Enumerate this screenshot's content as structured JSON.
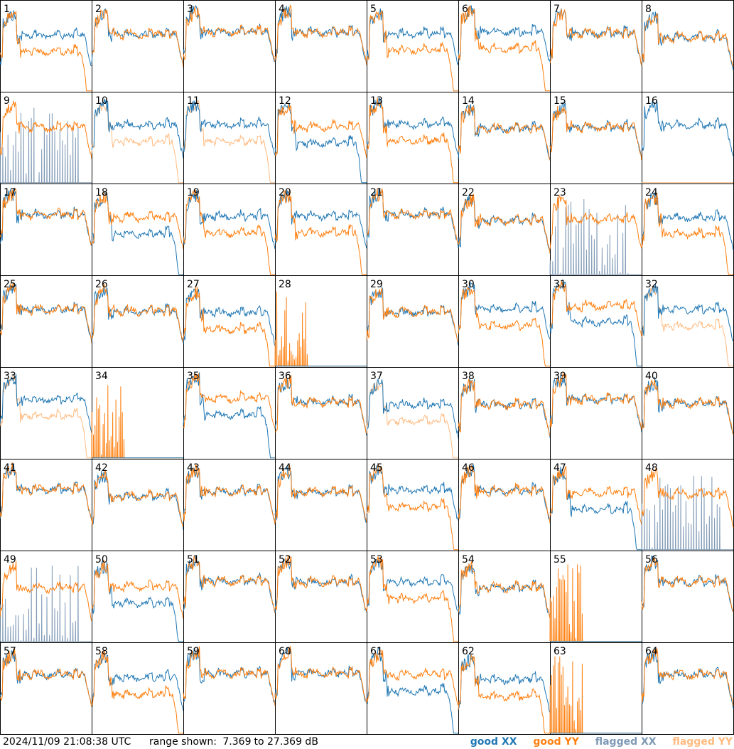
{
  "chart_data": {
    "type": "line",
    "layout": "small multiples, 8 x 8 grid of antenna spectra",
    "tiles": [
      "1",
      "2",
      "3",
      "4",
      "5",
      "6",
      "7",
      "8",
      "9",
      "10",
      "11",
      "12",
      "13",
      "14",
      "15",
      "16",
      "17",
      "18",
      "19",
      "20",
      "21",
      "22",
      "23",
      "24",
      "25",
      "26",
      "27",
      "28",
      "29",
      "30",
      "31",
      "32",
      "33",
      "34",
      "35",
      "36",
      "37",
      "38",
      "39",
      "40",
      "41",
      "42",
      "43",
      "44",
      "45",
      "46",
      "47",
      "48",
      "49",
      "50",
      "51",
      "52",
      "53",
      "54",
      "55",
      "56",
      "57",
      "58",
      "59",
      "60",
      "61",
      "62",
      "63",
      "64"
    ],
    "series": [
      {
        "name": "good XX",
        "color": "#1f77b4"
      },
      {
        "name": "good YY",
        "color": "#ff7f0e"
      },
      {
        "name": "flagged XX",
        "color": "#7f99b5"
      },
      {
        "name": "flagged YY",
        "color": "#ffbb80"
      }
    ],
    "ylim": [
      7.369,
      27.369
    ],
    "grid": false,
    "legend_position": "bottom-right",
    "patterns": {
      "normal": [
        "2",
        "3",
        "4",
        "7",
        "8",
        "14",
        "15",
        "17",
        "21",
        "22",
        "25",
        "26",
        "29",
        "36",
        "38",
        "39",
        "40",
        "41",
        "42",
        "43",
        "44",
        "46",
        "51",
        "52",
        "54",
        "56",
        "57",
        "59",
        "60",
        "64"
      ],
      "split": [
        "1",
        "5",
        "6",
        "12",
        "13",
        "18",
        "19",
        "20",
        "24",
        "27",
        "30",
        "31",
        "35",
        "45",
        "47",
        "50",
        "53",
        "58",
        "61",
        "62"
      ],
      "yy_flagged": [
        "10",
        "11",
        "32",
        "33",
        "37"
      ],
      "xx_flagged": [
        "9",
        "23",
        "48",
        "49"
      ],
      "spiky_dead": [
        "28",
        "34",
        "55",
        "63"
      ],
      "flat_x": [
        "16"
      ]
    }
  },
  "footer": {
    "timestamp": "2024/11/09 21:08:38 UTC",
    "range_prefix": "range shown:",
    "range_min": "7.369",
    "range_joiner": "to",
    "range_max": "27.369 dB"
  },
  "legend": {
    "good_xx": "good XX",
    "good_yy": "good YY",
    "flagged_xx": "flagged XX",
    "flagged_yy": "flagged YY"
  }
}
